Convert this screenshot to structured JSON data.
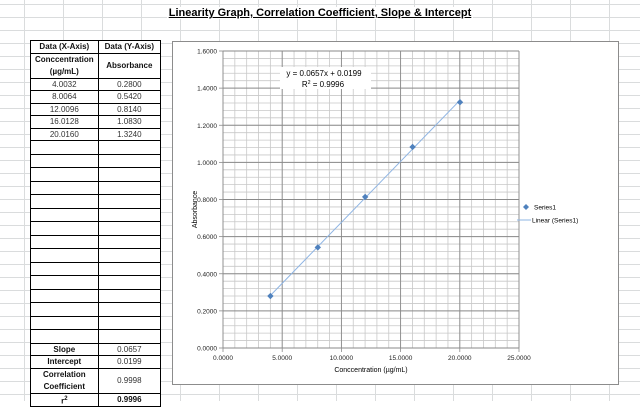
{
  "page": {
    "title": "Linearity Graph, Correlation Coefficient, Slope & Intercept"
  },
  "table": {
    "headers": {
      "x_axis": "Data (X-Axis)",
      "y_axis": "Data (Y-Axis)",
      "x_label_line1": "Conccentration",
      "x_label_line2": "(µg/mL)",
      "y_label": "Absorbance"
    },
    "rows": [
      {
        "x": "4.0032",
        "y": "0.2800"
      },
      {
        "x": "8.0064",
        "y": "0.5420"
      },
      {
        "x": "12.0096",
        "y": "0.8140"
      },
      {
        "x": "16.0128",
        "y": "1.0830"
      },
      {
        "x": "20.0160",
        "y": "1.3240"
      }
    ],
    "stats": {
      "slope_label": "Slope",
      "slope_value": "0.0657",
      "intercept_label": "Intercept",
      "intercept_value": "0.0199",
      "corr_label_line1": "Correlation",
      "corr_label_line2": "Coefficient",
      "corr_value": "0.9998",
      "r2_label": "r",
      "r2_sup": "2",
      "r2_value": "0.9996"
    }
  },
  "chart_data": {
    "type": "scatter",
    "title": "",
    "xlabel": "Conccentration (µg/mL)",
    "ylabel": "Absorbance",
    "xlim": [
      0,
      25
    ],
    "ylim": [
      0,
      1.6
    ],
    "x_ticks": [
      "0.0000",
      "5.0000",
      "10.0000",
      "15.0000",
      "20.0000",
      "25.0000"
    ],
    "y_ticks": [
      "0.0000",
      "0.2000",
      "0.4000",
      "0.6000",
      "0.8000",
      "1.0000",
      "1.2000",
      "1.4000",
      "1.6000"
    ],
    "grid": true,
    "legend_position": "right",
    "series": [
      {
        "name": "Series1",
        "marker": "diamond",
        "color": "#4f81bd",
        "x": [
          4.0032,
          8.0064,
          12.0096,
          16.0128,
          20.016
        ],
        "y": [
          0.28,
          0.542,
          0.814,
          1.083,
          1.324
        ]
      },
      {
        "name": "Linear (Series1)",
        "type": "trendline",
        "color": "#8eb4e3",
        "slope": 0.0657,
        "intercept": 0.0199
      }
    ],
    "annotations": {
      "equation": "y = 0.0657x + 0.0199",
      "r2_prefix": "R",
      "r2_sup": "2",
      "r2_text": " = 0.9996"
    },
    "legend": [
      "Series1",
      "Linear (Series1)"
    ]
  }
}
